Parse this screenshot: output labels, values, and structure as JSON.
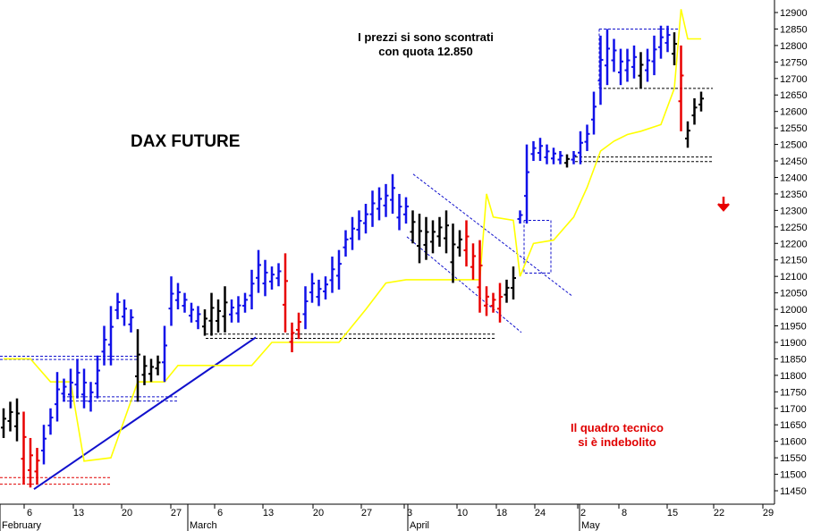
{
  "chart_data": {
    "type": "ohlc",
    "title": "DAX FUTURE",
    "annotations": {
      "top_line1": "I prezzi si sono scontrati",
      "top_line2": "con quota 12.850",
      "bottom_line1": "Il quadro tecnico",
      "bottom_line2": "si è indebolito"
    },
    "ylim": [
      11430,
      12930
    ],
    "y_ticks": [
      "11450",
      "11500",
      "11550",
      "11600",
      "11650",
      "11700",
      "11750",
      "11800",
      "11850",
      "11900",
      "11950",
      "12000",
      "12050",
      "12100",
      "12150",
      "12200",
      "12250",
      "12300",
      "12350",
      "12400",
      "12450",
      "12500",
      "12550",
      "12600",
      "12650",
      "12700",
      "12750",
      "12800",
      "12850",
      "12900"
    ],
    "x_ticks": [
      "6",
      "13",
      "20",
      "27",
      "6",
      "13",
      "20",
      "27",
      "3",
      "10",
      "18",
      "24",
      "2",
      "8",
      "15",
      "22",
      "29"
    ],
    "month_labels": [
      "February",
      "March",
      "April",
      "May"
    ],
    "colors": {
      "up": "#1010e8",
      "down": "#e80000",
      "neutral": "#000000",
      "line": "#ffff00",
      "trend": "#1010cc"
    },
    "bars": [
      {
        "x": 0,
        "h": 11700,
        "l": 11610,
        "c": "neutral"
      },
      {
        "x": 1,
        "h": 11720,
        "l": 11630,
        "c": "neutral"
      },
      {
        "x": 2,
        "h": 11730,
        "l": 11600,
        "c": "neutral"
      },
      {
        "x": 3,
        "h": 11690,
        "l": 11470,
        "c": "down"
      },
      {
        "x": 4,
        "h": 11610,
        "l": 11460,
        "c": "down"
      },
      {
        "x": 5,
        "h": 11580,
        "l": 11470,
        "c": "down"
      },
      {
        "x": 6,
        "h": 11650,
        "l": 11530,
        "c": "up"
      },
      {
        "x": 7,
        "h": 11700,
        "l": 11620,
        "c": "up"
      },
      {
        "x": 8,
        "h": 11810,
        "l": 11660,
        "c": "up"
      },
      {
        "x": 9,
        "h": 11790,
        "l": 11720,
        "c": "up"
      },
      {
        "x": 10,
        "h": 11820,
        "l": 11700,
        "c": "up"
      },
      {
        "x": 11,
        "h": 11850,
        "l": 11730,
        "c": "up"
      },
      {
        "x": 12,
        "h": 11820,
        "l": 11700,
        "c": "up"
      },
      {
        "x": 13,
        "h": 11780,
        "l": 11690,
        "c": "up"
      },
      {
        "x": 14,
        "h": 11860,
        "l": 11730,
        "c": "up"
      },
      {
        "x": 15,
        "h": 11950,
        "l": 11830,
        "c": "up"
      },
      {
        "x": 16,
        "h": 12010,
        "l": 11830,
        "c": "up"
      },
      {
        "x": 17,
        "h": 12050,
        "l": 11970,
        "c": "up"
      },
      {
        "x": 18,
        "h": 12030,
        "l": 11950,
        "c": "up"
      },
      {
        "x": 19,
        "h": 12000,
        "l": 11930,
        "c": "up"
      },
      {
        "x": 20,
        "h": 11940,
        "l": 11720,
        "c": "neutral"
      },
      {
        "x": 21,
        "h": 11860,
        "l": 11770,
        "c": "neutral"
      },
      {
        "x": 22,
        "h": 11850,
        "l": 11780,
        "c": "neutral"
      },
      {
        "x": 23,
        "h": 11860,
        "l": 11800,
        "c": "neutral"
      },
      {
        "x": 24,
        "h": 11950,
        "l": 11780,
        "c": "up"
      },
      {
        "x": 25,
        "h": 12100,
        "l": 11950,
        "c": "up"
      },
      {
        "x": 26,
        "h": 12080,
        "l": 12000,
        "c": "up"
      },
      {
        "x": 27,
        "h": 12050,
        "l": 11990,
        "c": "up"
      },
      {
        "x": 28,
        "h": 12020,
        "l": 11960,
        "c": "up"
      },
      {
        "x": 29,
        "h": 12010,
        "l": 11940,
        "c": "up"
      },
      {
        "x": 30,
        "h": 12000,
        "l": 11920,
        "c": "neutral"
      },
      {
        "x": 31,
        "h": 12050,
        "l": 11920,
        "c": "neutral"
      },
      {
        "x": 32,
        "h": 12030,
        "l": 11930,
        "c": "neutral"
      },
      {
        "x": 33,
        "h": 12070,
        "l": 11930,
        "c": "neutral"
      },
      {
        "x": 34,
        "h": 12030,
        "l": 11960,
        "c": "up"
      },
      {
        "x": 35,
        "h": 12040,
        "l": 11960,
        "c": "up"
      },
      {
        "x": 36,
        "h": 12050,
        "l": 11990,
        "c": "up"
      },
      {
        "x": 37,
        "h": 12120,
        "l": 12000,
        "c": "up"
      },
      {
        "x": 38,
        "h": 12180,
        "l": 12050,
        "c": "up"
      },
      {
        "x": 39,
        "h": 12150,
        "l": 12040,
        "c": "up"
      },
      {
        "x": 40,
        "h": 12130,
        "l": 12060,
        "c": "up"
      },
      {
        "x": 41,
        "h": 12140,
        "l": 12070,
        "c": "up"
      },
      {
        "x": 42,
        "h": 12170,
        "l": 11930,
        "c": "down"
      },
      {
        "x": 43,
        "h": 11960,
        "l": 11870,
        "c": "down"
      },
      {
        "x": 44,
        "h": 11990,
        "l": 11910,
        "c": "down"
      },
      {
        "x": 45,
        "h": 12070,
        "l": 11940,
        "c": "up"
      },
      {
        "x": 46,
        "h": 12110,
        "l": 12020,
        "c": "up"
      },
      {
        "x": 47,
        "h": 12090,
        "l": 12010,
        "c": "up"
      },
      {
        "x": 48,
        "h": 12100,
        "l": 12030,
        "c": "up"
      },
      {
        "x": 49,
        "h": 12160,
        "l": 12050,
        "c": "up"
      },
      {
        "x": 50,
        "h": 12180,
        "l": 12060,
        "c": "up"
      },
      {
        "x": 51,
        "h": 12240,
        "l": 12160,
        "c": "up"
      },
      {
        "x": 52,
        "h": 12280,
        "l": 12180,
        "c": "up"
      },
      {
        "x": 53,
        "h": 12300,
        "l": 12210,
        "c": "up"
      },
      {
        "x": 54,
        "h": 12320,
        "l": 12230,
        "c": "up"
      },
      {
        "x": 55,
        "h": 12360,
        "l": 12250,
        "c": "up"
      },
      {
        "x": 56,
        "h": 12370,
        "l": 12270,
        "c": "up"
      },
      {
        "x": 57,
        "h": 12380,
        "l": 12280,
        "c": "up"
      },
      {
        "x": 58,
        "h": 12410,
        "l": 12290,
        "c": "up"
      },
      {
        "x": 59,
        "h": 12350,
        "l": 12240,
        "c": "up"
      },
      {
        "x": 60,
        "h": 12340,
        "l": 12260,
        "c": "up"
      },
      {
        "x": 61,
        "h": 12300,
        "l": 12200,
        "c": "neutral"
      },
      {
        "x": 62,
        "h": 12290,
        "l": 12140,
        "c": "neutral"
      },
      {
        "x": 63,
        "h": 12280,
        "l": 12150,
        "c": "neutral"
      },
      {
        "x": 64,
        "h": 12270,
        "l": 12170,
        "c": "neutral"
      },
      {
        "x": 65,
        "h": 12280,
        "l": 12190,
        "c": "neutral"
      },
      {
        "x": 66,
        "h": 12300,
        "l": 12170,
        "c": "neutral"
      },
      {
        "x": 67,
        "h": 12260,
        "l": 12080,
        "c": "neutral"
      },
      {
        "x": 68,
        "h": 12240,
        "l": 12160,
        "c": "neutral"
      },
      {
        "x": 69,
        "h": 12270,
        "l": 12130,
        "c": "down"
      },
      {
        "x": 70,
        "h": 12200,
        "l": 12090,
        "c": "down"
      },
      {
        "x": 71,
        "h": 12210,
        "l": 11990,
        "c": "down"
      },
      {
        "x": 72,
        "h": 12070,
        "l": 11980,
        "c": "down"
      },
      {
        "x": 73,
        "h": 12050,
        "l": 11990,
        "c": "down"
      },
      {
        "x": 74,
        "h": 12080,
        "l": 11960,
        "c": "down"
      },
      {
        "x": 75,
        "h": 12090,
        "l": 12020,
        "c": "neutral"
      },
      {
        "x": 76,
        "h": 12130,
        "l": 12030,
        "c": "neutral"
      },
      {
        "x": 77,
        "h": 12300,
        "l": 12260,
        "c": "up"
      },
      {
        "x": 78,
        "h": 12500,
        "l": 12260,
        "c": "up"
      },
      {
        "x": 79,
        "h": 12510,
        "l": 12450,
        "c": "up"
      },
      {
        "x": 80,
        "h": 12520,
        "l": 12450,
        "c": "up"
      },
      {
        "x": 81,
        "h": 12500,
        "l": 12440,
        "c": "up"
      },
      {
        "x": 82,
        "h": 12490,
        "l": 12440,
        "c": "up"
      },
      {
        "x": 83,
        "h": 12480,
        "l": 12440,
        "c": "up"
      },
      {
        "x": 84,
        "h": 12470,
        "l": 12430,
        "c": "neutral"
      },
      {
        "x": 85,
        "h": 12480,
        "l": 12440,
        "c": "up"
      },
      {
        "x": 86,
        "h": 12540,
        "l": 12440,
        "c": "up"
      },
      {
        "x": 87,
        "h": 12560,
        "l": 12480,
        "c": "up"
      },
      {
        "x": 88,
        "h": 12660,
        "l": 12530,
        "c": "up"
      },
      {
        "x": 89,
        "h": 12830,
        "l": 12620,
        "c": "up"
      },
      {
        "x": 90,
        "h": 12850,
        "l": 12680,
        "c": "up"
      },
      {
        "x": 91,
        "h": 12820,
        "l": 12720,
        "c": "up"
      },
      {
        "x": 92,
        "h": 12790,
        "l": 12680,
        "c": "up"
      },
      {
        "x": 93,
        "h": 12790,
        "l": 12690,
        "c": "up"
      },
      {
        "x": 94,
        "h": 12800,
        "l": 12700,
        "c": "up"
      },
      {
        "x": 95,
        "h": 12780,
        "l": 12670,
        "c": "neutral"
      },
      {
        "x": 96,
        "h": 12790,
        "l": 12690,
        "c": "up"
      },
      {
        "x": 97,
        "h": 12830,
        "l": 12710,
        "c": "up"
      },
      {
        "x": 98,
        "h": 12860,
        "l": 12760,
        "c": "up"
      },
      {
        "x": 99,
        "h": 12860,
        "l": 12780,
        "c": "up"
      },
      {
        "x": 100,
        "h": 12840,
        "l": 12740,
        "c": "neutral"
      },
      {
        "x": 101,
        "h": 12800,
        "l": 12540,
        "c": "down"
      },
      {
        "x": 102,
        "h": 12570,
        "l": 12490,
        "c": "neutral"
      },
      {
        "x": 103,
        "h": 12640,
        "l": 12560,
        "c": "neutral"
      },
      {
        "x": 104,
        "h": 12660,
        "l": 12600,
        "c": "neutral"
      }
    ],
    "yellow_line": [
      [
        0,
        11850
      ],
      [
        4,
        11850
      ],
      [
        7,
        11780
      ],
      [
        10,
        11780
      ],
      [
        12,
        11540
      ],
      [
        16,
        11550
      ],
      [
        20,
        11780
      ],
      [
        24,
        11780
      ],
      [
        26,
        11830
      ],
      [
        32,
        11830
      ],
      [
        35,
        11830
      ],
      [
        37,
        11830
      ],
      [
        40,
        11900
      ],
      [
        45,
        11900
      ],
      [
        48,
        11900
      ],
      [
        50,
        11900
      ],
      [
        54,
        12000
      ],
      [
        57,
        12080
      ],
      [
        60,
        12090
      ],
      [
        64,
        12090
      ],
      [
        71,
        12090
      ],
      [
        72,
        12350
      ],
      [
        73,
        12280
      ],
      [
        76,
        12270
      ],
      [
        77,
        12100
      ],
      [
        79,
        12200
      ],
      [
        82,
        12210
      ],
      [
        85,
        12280
      ],
      [
        87,
        12370
      ],
      [
        89,
        12480
      ],
      [
        91,
        12510
      ],
      [
        93,
        12530
      ],
      [
        95,
        12540
      ],
      [
        98,
        12560
      ],
      [
        100,
        12670
      ],
      [
        101,
        12910
      ],
      [
        102,
        12820
      ],
      [
        104,
        12820
      ]
    ]
  }
}
